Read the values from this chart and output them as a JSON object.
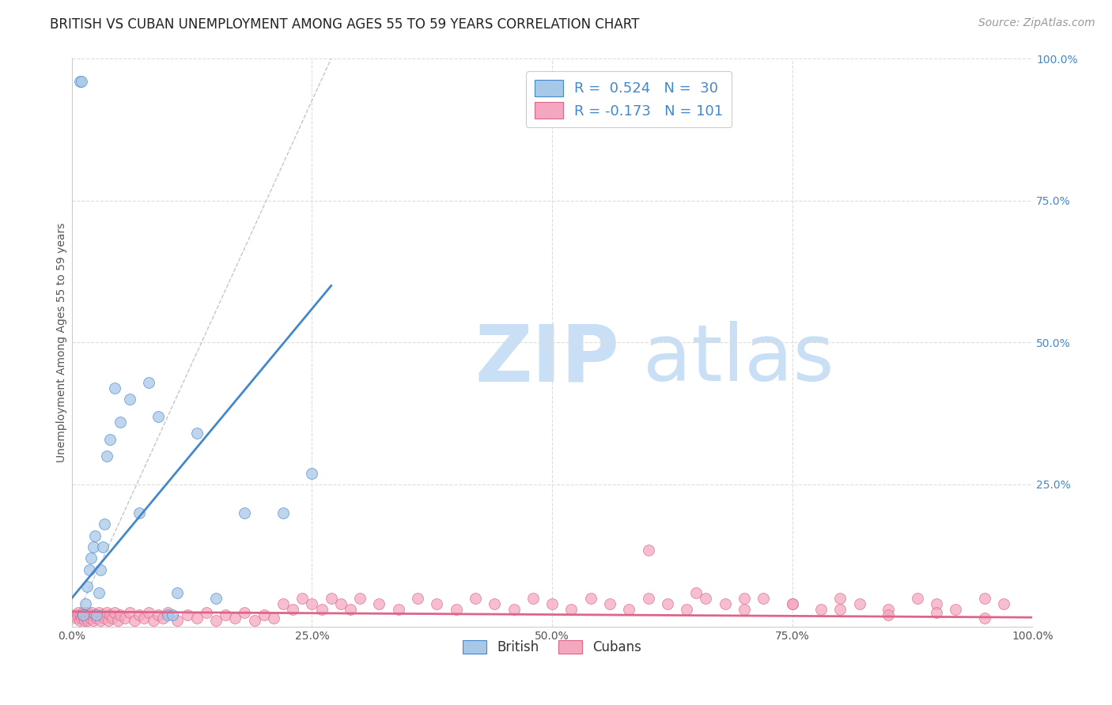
{
  "title": "BRITISH VS CUBAN UNEMPLOYMENT AMONG AGES 55 TO 59 YEARS CORRELATION CHART",
  "source": "Source: ZipAtlas.com",
  "ylabel": "Unemployment Among Ages 55 to 59 years",
  "xlim": [
    0.0,
    1.0
  ],
  "ylim": [
    0.0,
    1.0
  ],
  "xticks": [
    0.0,
    0.25,
    0.5,
    0.75,
    1.0
  ],
  "xticklabels": [
    "0.0%",
    "25.0%",
    "50.0%",
    "75.0%",
    "100.0%"
  ],
  "right_yticks": [
    0.25,
    0.5,
    0.75,
    1.0
  ],
  "right_yticklabels": [
    "25.0%",
    "50.0%",
    "75.0%",
    "100.0%"
  ],
  "british_color": "#a8c8e8",
  "cuban_color": "#f4a8c0",
  "british_R": 0.524,
  "british_N": 30,
  "cuban_R": -0.173,
  "cuban_N": 101,
  "british_line_color": "#4488cc",
  "cuban_line_color": "#dd6688",
  "ref_line_color": "#aabbcc",
  "legend_R_N_color": "#4488cc",
  "watermark_zip_color": "#c8dff5",
  "watermark_atlas_color": "#c8dff5",
  "background_color": "#ffffff",
  "grid_color": "#dddddd",
  "title_fontsize": 12,
  "axis_label_fontsize": 10,
  "tick_fontsize": 10,
  "legend_fontsize": 13,
  "source_fontsize": 10,
  "british_x": [
    0.008,
    0.01,
    0.012,
    0.014,
    0.016,
    0.018,
    0.02,
    0.022,
    0.024,
    0.026,
    0.028,
    0.03,
    0.032,
    0.034,
    0.036,
    0.04,
    0.045,
    0.05,
    0.06,
    0.07,
    0.08,
    0.09,
    0.11,
    0.13,
    0.15,
    0.18,
    0.22,
    0.25,
    0.1,
    0.105
  ],
  "british_y": [
    0.96,
    0.96,
    0.02,
    0.04,
    0.07,
    0.1,
    0.12,
    0.14,
    0.16,
    0.02,
    0.06,
    0.1,
    0.14,
    0.18,
    0.3,
    0.33,
    0.42,
    0.36,
    0.4,
    0.2,
    0.43,
    0.37,
    0.06,
    0.34,
    0.05,
    0.2,
    0.2,
    0.27,
    0.02,
    0.02
  ],
  "cuban_x": [
    0.003,
    0.005,
    0.006,
    0.007,
    0.008,
    0.009,
    0.01,
    0.011,
    0.012,
    0.013,
    0.014,
    0.015,
    0.016,
    0.017,
    0.018,
    0.019,
    0.02,
    0.021,
    0.022,
    0.024,
    0.026,
    0.028,
    0.03,
    0.032,
    0.034,
    0.036,
    0.038,
    0.04,
    0.042,
    0.045,
    0.048,
    0.05,
    0.055,
    0.06,
    0.065,
    0.07,
    0.075,
    0.08,
    0.085,
    0.09,
    0.095,
    0.1,
    0.11,
    0.12,
    0.13,
    0.14,
    0.15,
    0.16,
    0.17,
    0.18,
    0.19,
    0.2,
    0.21,
    0.22,
    0.23,
    0.24,
    0.25,
    0.26,
    0.27,
    0.28,
    0.29,
    0.3,
    0.32,
    0.34,
    0.36,
    0.38,
    0.4,
    0.42,
    0.44,
    0.46,
    0.48,
    0.5,
    0.52,
    0.54,
    0.56,
    0.58,
    0.6,
    0.62,
    0.64,
    0.66,
    0.68,
    0.7,
    0.72,
    0.75,
    0.78,
    0.8,
    0.82,
    0.85,
    0.88,
    0.9,
    0.92,
    0.95,
    0.97,
    0.6,
    0.65,
    0.7,
    0.75,
    0.8,
    0.85,
    0.9,
    0.95
  ],
  "cuban_y": [
    0.02,
    0.015,
    0.02,
    0.025,
    0.01,
    0.02,
    0.015,
    0.02,
    0.025,
    0.01,
    0.02,
    0.015,
    0.025,
    0.01,
    0.02,
    0.015,
    0.02,
    0.025,
    0.01,
    0.02,
    0.015,
    0.025,
    0.01,
    0.02,
    0.015,
    0.025,
    0.01,
    0.02,
    0.015,
    0.025,
    0.01,
    0.02,
    0.015,
    0.025,
    0.01,
    0.02,
    0.015,
    0.025,
    0.01,
    0.02,
    0.015,
    0.025,
    0.01,
    0.02,
    0.015,
    0.025,
    0.01,
    0.02,
    0.015,
    0.025,
    0.01,
    0.02,
    0.015,
    0.04,
    0.03,
    0.05,
    0.04,
    0.03,
    0.05,
    0.04,
    0.03,
    0.05,
    0.04,
    0.03,
    0.05,
    0.04,
    0.03,
    0.05,
    0.04,
    0.03,
    0.05,
    0.04,
    0.03,
    0.05,
    0.04,
    0.03,
    0.05,
    0.04,
    0.03,
    0.05,
    0.04,
    0.03,
    0.05,
    0.04,
    0.03,
    0.05,
    0.04,
    0.03,
    0.05,
    0.04,
    0.03,
    0.05,
    0.04,
    0.135,
    0.06,
    0.05,
    0.04,
    0.03,
    0.02,
    0.025,
    0.015
  ]
}
